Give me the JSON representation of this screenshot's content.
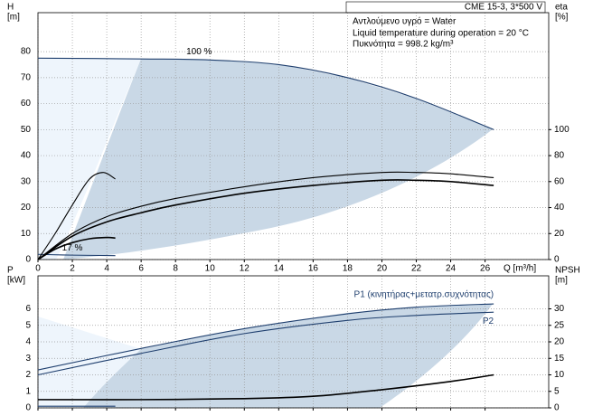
{
  "info": {
    "model": "CME 15-3, 3*500 V",
    "liquid": "Αντλούμενο υγρό = Water",
    "temperature": "Liquid temperature during operation = 20 °C",
    "density": "Πυκνότητα = 998.2 kg/m³"
  },
  "chart_data": [
    {
      "type": "line",
      "ylabel": "H",
      "yunit": "[m]",
      "y2label": "eta",
      "y2unit": "[%]",
      "xlabel": "Q [m³/h]",
      "xlim": [
        0,
        29.7
      ],
      "xticks": [
        0,
        2,
        4,
        6,
        8,
        10,
        12,
        14,
        16,
        18,
        20,
        22,
        24,
        26
      ],
      "ylim": [
        0,
        95
      ],
      "yticks": [
        0,
        10,
        20,
        30,
        40,
        50,
        60,
        70,
        80
      ],
      "y2lim": [
        0,
        190
      ],
      "y2ticks": [
        0,
        20,
        40,
        60,
        80,
        100
      ],
      "grid": true,
      "series": [
        {
          "name": "100 %",
          "color": "#1f3f6e",
          "x": [
            0,
            6,
            10,
            14,
            18,
            22,
            26.5
          ],
          "values": [
            77.5,
            77.2,
            76.8,
            75,
            70,
            62,
            50
          ]
        },
        {
          "name": "17 %",
          "color": "#1f3f6e",
          "x": [
            0,
            2,
            4.5
          ],
          "values": [
            2,
            1.7,
            1.5
          ]
        },
        {
          "axis": "y2",
          "color": "#000000",
          "x": [
            0,
            2,
            4,
            6,
            8,
            12,
            16,
            20,
            22,
            24,
            26.5
          ],
          "values": [
            0,
            20,
            33,
            41,
            47,
            56,
            63,
            67,
            67,
            66,
            63
          ]
        },
        {
          "axis": "y2",
          "color": "#000000",
          "x": [
            0,
            2,
            4,
            6,
            8,
            12,
            16,
            20,
            22,
            24,
            26.5
          ],
          "values": [
            0,
            18,
            29,
            36,
            42,
            51,
            57,
            61,
            61,
            60,
            57
          ]
        },
        {
          "axis": "y2",
          "color": "#000000",
          "x": [
            0,
            1,
            2,
            3,
            3.8,
            4.5
          ],
          "values": [
            0,
            20,
            42,
            62,
            67,
            62
          ]
        },
        {
          "axis": "y2",
          "color": "#000000",
          "x": [
            0,
            1,
            2,
            3,
            4,
            4.5
          ],
          "values": [
            0,
            8,
            13,
            16,
            17,
            16.5
          ]
        }
      ]
    },
    {
      "type": "line",
      "ylabel": "P",
      "yunit": "[kW]",
      "y2label": "NPSH",
      "y2unit": "[m]",
      "xlim": [
        0,
        29.7
      ],
      "xticks": [
        0,
        2,
        4,
        6,
        8,
        10,
        12,
        14,
        16,
        18,
        20,
        22,
        24,
        26
      ],
      "ylim": [
        0,
        8
      ],
      "yticks": [
        0,
        1,
        2,
        3,
        4,
        5,
        6
      ],
      "y2lim": [
        0,
        40
      ],
      "y2ticks": [
        0,
        5,
        10,
        15,
        20,
        25,
        30
      ],
      "grid": true,
      "series": [
        {
          "name": "P1 (κινητήρας+μετατρ.συχνότητας)",
          "color": "#1f3f6e",
          "x": [
            0,
            6,
            12,
            18,
            22,
            26.5
          ],
          "values": [
            2.3,
            3.6,
            4.8,
            5.7,
            6.1,
            6.3
          ]
        },
        {
          "name": "P2",
          "color": "#1f3f6e",
          "x": [
            0,
            6,
            12,
            18,
            22,
            26.5
          ],
          "values": [
            2.0,
            3.3,
            4.5,
            5.3,
            5.6,
            5.8
          ]
        },
        {
          "color": "#1f3f6e",
          "x": [
            0,
            4.5
          ],
          "values": [
            0.1,
            0.1
          ]
        },
        {
          "axis": "y2",
          "color": "#000000",
          "x": [
            0,
            6,
            12,
            16,
            20,
            24,
            26.5
          ],
          "values": [
            2.5,
            2.5,
            2.8,
            3.5,
            5.5,
            8,
            10
          ]
        }
      ]
    }
  ]
}
